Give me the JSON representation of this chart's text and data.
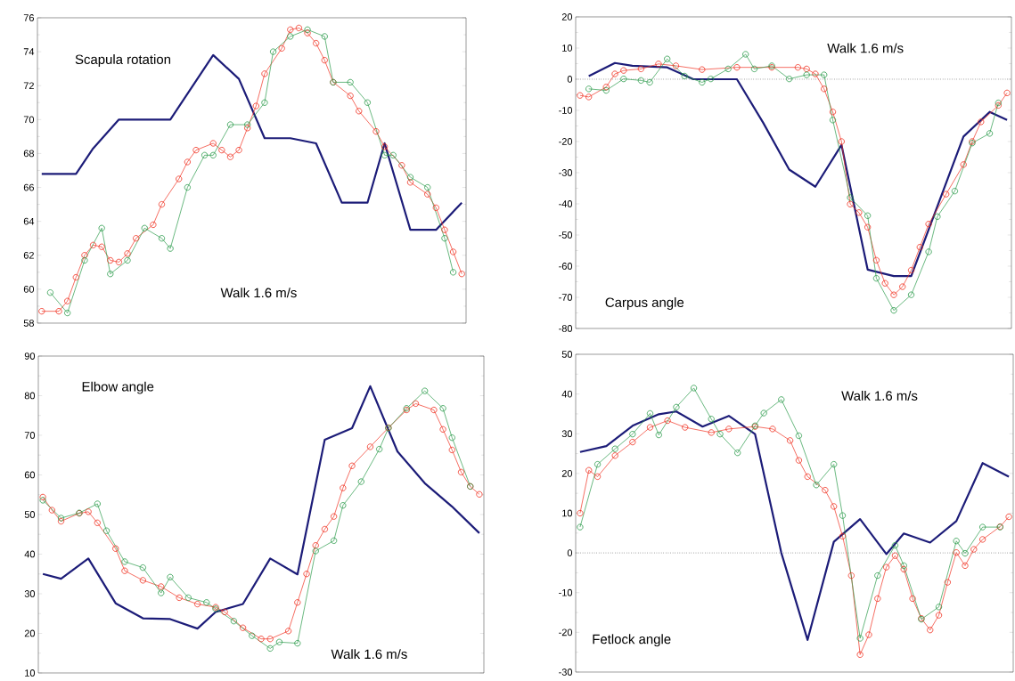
{
  "chart_data": [
    {
      "type": "line",
      "title": "Scapula rotation",
      "annotations": [
        "Walk 1.6  m/s"
      ],
      "categories": [
        null,
        null,
        null,
        null,
        null,
        null,
        null,
        null,
        null,
        null,
        null,
        null,
        null,
        null,
        null,
        null,
        null,
        null,
        null,
        null,
        null,
        null,
        null,
        null,
        null,
        null,
        null,
        null,
        null,
        null,
        null,
        null,
        null,
        null,
        null,
        null,
        null,
        null,
        null,
        null,
        null,
        null,
        null,
        null,
        null,
        null,
        null,
        null,
        null,
        null
      ],
      "ylim": [
        58,
        76
      ],
      "yticks": [
        58,
        60,
        62,
        64,
        66,
        68,
        70,
        72,
        74,
        76
      ],
      "tick_labels": "y",
      "series": [
        {
          "color": "#1c1c78",
          "marker": "none",
          "values": [
            66.8,
            null,
            null,
            null,
            66.8,
            null,
            68.3,
            null,
            null,
            70.0,
            null,
            null,
            null,
            null,
            null,
            70.0,
            null,
            null,
            null,
            null,
            73.8,
            null,
            null,
            72.4,
            null,
            null,
            68.9,
            null,
            null,
            68.9,
            null,
            null,
            68.6,
            null,
            null,
            65.1,
            null,
            null,
            65.1,
            null,
            68.6,
            null,
            null,
            63.5,
            null,
            null,
            63.5,
            null,
            null,
            65.1
          ]
        },
        {
          "color": "#f03020",
          "marker": "circle",
          "values": [
            58.7,
            null,
            58.7,
            59.3,
            60.7,
            62.0,
            62.6,
            62.5,
            61.7,
            61.6,
            62.1,
            63.0,
            null,
            63.8,
            65.0,
            null,
            66.5,
            67.5,
            68.2,
            null,
            68.6,
            68.2,
            67.8,
            68.2,
            69.5,
            70.8,
            72.7,
            null,
            74.2,
            75.3,
            75.4,
            75.1,
            74.5,
            73.5,
            72.2,
            null,
            71.4,
            70.5,
            null,
            69.3,
            68.4,
            null,
            67.3,
            66.3,
            null,
            65.6,
            64.8,
            63.5,
            62.2,
            60.9
          ]
        },
        {
          "color": "#2a9a4a",
          "marker": "circle",
          "values": [
            null,
            59.8,
            null,
            58.6,
            null,
            61.7,
            null,
            63.6,
            60.9,
            null,
            61.7,
            null,
            63.6,
            null,
            63.0,
            62.4,
            null,
            66.0,
            null,
            67.9,
            67.9,
            null,
            69.7,
            null,
            69.7,
            null,
            71.0,
            74.0,
            null,
            74.9,
            null,
            75.3,
            null,
            74.9,
            72.2,
            null,
            72.2,
            null,
            71.0,
            null,
            67.9,
            67.9,
            null,
            66.6,
            null,
            66.0,
            null,
            63.0,
            61.0,
            null
          ]
        }
      ]
    },
    {
      "type": "line",
      "title": "Carpus angle",
      "annotations": [
        "Walk 1.6  m/s"
      ],
      "categories": [
        null,
        null,
        null,
        null,
        null,
        null,
        null,
        null,
        null,
        null,
        null,
        null,
        null,
        null,
        null,
        null,
        null,
        null,
        null,
        null,
        null,
        null,
        null,
        null,
        null,
        null,
        null,
        null,
        null,
        null,
        null,
        null,
        null,
        null,
        null,
        null,
        null,
        null,
        null,
        null,
        null,
        null,
        null,
        null,
        null,
        null,
        null,
        null,
        null,
        null
      ],
      "ylim": [
        -80,
        20
      ],
      "yticks": [
        -80,
        -70,
        -60,
        -50,
        -40,
        -30,
        -20,
        -10,
        0,
        10,
        20
      ],
      "tick_labels": "y",
      "ref_lines": [
        {
          "axis": "y",
          "value": 0,
          "line_style": "dotted"
        }
      ],
      "series": [
        {
          "color": "#1c1c78",
          "marker": "none",
          "values": [
            null,
            1,
            null,
            null,
            5.2,
            null,
            4.3,
            null,
            null,
            null,
            3.8,
            null,
            null,
            0,
            null,
            null,
            null,
            null,
            0,
            null,
            null,
            -13.9,
            null,
            null,
            -29.0,
            null,
            null,
            -34.5,
            null,
            null,
            -21.1,
            null,
            null,
            -61.1,
            null,
            null,
            -63.2,
            null,
            -63.2,
            null,
            null,
            null,
            null,
            null,
            -18.4,
            null,
            null,
            -10.5,
            null,
            -13.1
          ]
        },
        {
          "color": "#f03020",
          "marker": "circle",
          "values": [
            -5.2,
            -5.7,
            null,
            -2.5,
            1.7,
            2.8,
            null,
            3.3,
            null,
            4.9,
            null,
            4.3,
            null,
            null,
            3.1,
            null,
            null,
            null,
            3.8,
            null,
            null,
            null,
            3.8,
            null,
            null,
            3.8,
            3.3,
            1.7,
            -3.1,
            -10.5,
            -20.0,
            -40.1,
            -42.8,
            -47.5,
            -58.1,
            -65.5,
            -69.2,
            -66.6,
            -61.3,
            -53.9,
            -46.5,
            null,
            -36.9,
            null,
            -27.4,
            -20.0,
            -13.7,
            null,
            -8.4,
            -4.4
          ]
        },
        {
          "color": "#2a9a4a",
          "marker": "circle",
          "values": [
            null,
            -3.1,
            null,
            -3.6,
            null,
            0.1,
            null,
            -0.4,
            -1.0,
            null,
            6.5,
            null,
            1.0,
            null,
            -1.0,
            0.1,
            null,
            3.3,
            null,
            8.0,
            3.3,
            null,
            4.3,
            null,
            0.1,
            null,
            1.4,
            null,
            1.4,
            -13.1,
            null,
            -38.0,
            null,
            -43.8,
            -63.9,
            null,
            -74.2,
            null,
            -69.2,
            null,
            -55.4,
            -44.1,
            null,
            -35.9,
            null,
            -20.5,
            null,
            -17.4,
            -7.6,
            null
          ]
        }
      ]
    },
    {
      "type": "line",
      "title": "Elbow angle",
      "annotations": [
        "Walk 1.6  m/s"
      ],
      "categories": [
        null,
        null,
        null,
        null,
        null,
        null,
        null,
        null,
        null,
        null,
        null,
        null,
        null,
        null,
        null,
        null,
        null,
        null,
        null,
        null,
        null,
        null,
        null,
        null,
        null,
        null,
        null,
        null,
        null,
        null,
        null,
        null,
        null,
        null,
        null,
        null,
        null,
        null,
        null,
        null,
        null,
        null,
        null,
        null,
        null,
        null,
        null,
        null,
        null
      ],
      "ylim": [
        10,
        90
      ],
      "yticks": [
        10,
        20,
        30,
        40,
        50,
        60,
        70,
        80,
        90
      ],
      "tick_labels": "y",
      "series": [
        {
          "color": "#1c1c78",
          "marker": "none",
          "values": [
            35.0,
            null,
            33.8,
            null,
            null,
            38.9,
            null,
            null,
            27.6,
            null,
            null,
            23.8,
            null,
            null,
            23.6,
            null,
            null,
            21.2,
            null,
            25.4,
            null,
            null,
            27.4,
            null,
            null,
            38.9,
            null,
            null,
            34.9,
            null,
            null,
            68.9,
            null,
            null,
            71.8,
            null,
            82.4,
            null,
            null,
            65.9,
            null,
            null,
            57.9,
            null,
            null,
            52.0,
            null,
            null,
            45.3
          ]
        },
        {
          "color": "#f03020",
          "marker": "circle",
          "values": [
            54.4,
            51.1,
            48.3,
            null,
            50.3,
            50.7,
            47.9,
            null,
            41.4,
            35.8,
            null,
            33.4,
            null,
            31.8,
            null,
            29.0,
            null,
            27.4,
            null,
            26.6,
            25.4,
            null,
            21.4,
            null,
            18.6,
            18.6,
            null,
            20.6,
            27.8,
            35.0,
            42.2,
            46.3,
            49.5,
            56.7,
            62.3,
            null,
            67.1,
            null,
            71.9,
            null,
            76.4,
            78.0,
            null,
            76.4,
            71.5,
            66.3,
            60.7,
            57.1,
            55.1
          ]
        },
        {
          "color": "#2a9a4a",
          "marker": "circle",
          "values": [
            53.6,
            null,
            49.1,
            null,
            50.4,
            null,
            52.7,
            45.9,
            null,
            38.1,
            null,
            36.6,
            null,
            30.2,
            34.2,
            null,
            29.0,
            null,
            27.8,
            26.2,
            null,
            23.1,
            null,
            19.4,
            null,
            16.2,
            17.8,
            null,
            17.5,
            null,
            40.8,
            null,
            43.4,
            52.3,
            null,
            58.3,
            null,
            66.5,
            71.8,
            null,
            76.8,
            null,
            81.2,
            null,
            76.8,
            69.4,
            null,
            57.1,
            null
          ]
        }
      ]
    },
    {
      "type": "line",
      "title": "Fetlock angle",
      "annotations": [
        "Walk 1.6  m/s"
      ],
      "categories": [
        null,
        null,
        null,
        null,
        null,
        null,
        null,
        null,
        null,
        null,
        null,
        null,
        null,
        null,
        null,
        null,
        null,
        null,
        null,
        null,
        null,
        null,
        null,
        null,
        null,
        null,
        null,
        null,
        null,
        null,
        null,
        null,
        null,
        null,
        null,
        null,
        null,
        null,
        null,
        null,
        null,
        null,
        null,
        null,
        null,
        null,
        null,
        null,
        null,
        null
      ],
      "ylim": [
        -30,
        50
      ],
      "yticks": [
        -30,
        -20,
        -10,
        0,
        10,
        20,
        30,
        40,
        50
      ],
      "tick_labels": "y",
      "ref_lines": [
        {
          "axis": "y",
          "value": 0,
          "line_style": "dotted"
        }
      ],
      "series": [
        {
          "color": "#1c1c78",
          "marker": "none",
          "values": [
            25.4,
            null,
            null,
            26.9,
            null,
            null,
            32.0,
            null,
            null,
            34.9,
            null,
            35.6,
            null,
            null,
            31.8,
            null,
            null,
            34.5,
            null,
            null,
            29.9,
            null,
            null,
            0,
            null,
            null,
            -21.9,
            null,
            null,
            2.8,
            null,
            null,
            8.5,
            null,
            null,
            -0.3,
            null,
            4.9,
            null,
            null,
            2.6,
            null,
            null,
            8.0,
            null,
            null,
            22.6,
            null,
            null,
            19.2
          ]
        },
        {
          "color": "#f03020",
          "marker": "circle",
          "values": [
            10.0,
            20.8,
            19.2,
            null,
            24.5,
            null,
            27.9,
            null,
            31.6,
            null,
            33.3,
            null,
            31.6,
            null,
            null,
            30.3,
            null,
            31.2,
            null,
            null,
            31.8,
            null,
            31.2,
            null,
            28.3,
            23.3,
            19.2,
            null,
            15.8,
            11.7,
            4.2,
            -5.7,
            -25.6,
            -20.6,
            -11.5,
            -3.6,
            -0.7,
            -4.1,
            -11.5,
            -16.5,
            -19.4,
            -15.7,
            -7.4,
            0.1,
            -3.2,
            0.9,
            3.4,
            null,
            6.6,
            9.1
          ]
        },
        {
          "color": "#2a9a4a",
          "marker": "circle",
          "values": [
            6.5,
            null,
            22.3,
            null,
            26.2,
            null,
            29.9,
            null,
            35.1,
            29.7,
            null,
            36.7,
            null,
            41.5,
            null,
            33.7,
            29.9,
            null,
            25.2,
            null,
            32.0,
            35.2,
            null,
            38.6,
            null,
            29.5,
            null,
            17.1,
            null,
            22.3,
            9.4,
            null,
            -21.5,
            null,
            -5.7,
            null,
            1.9,
            -3.2,
            null,
            -16.7,
            null,
            -13.6,
            null,
            3.0,
            -0.1,
            null,
            6.5,
            null,
            6.5,
            null
          ]
        }
      ]
    }
  ]
}
